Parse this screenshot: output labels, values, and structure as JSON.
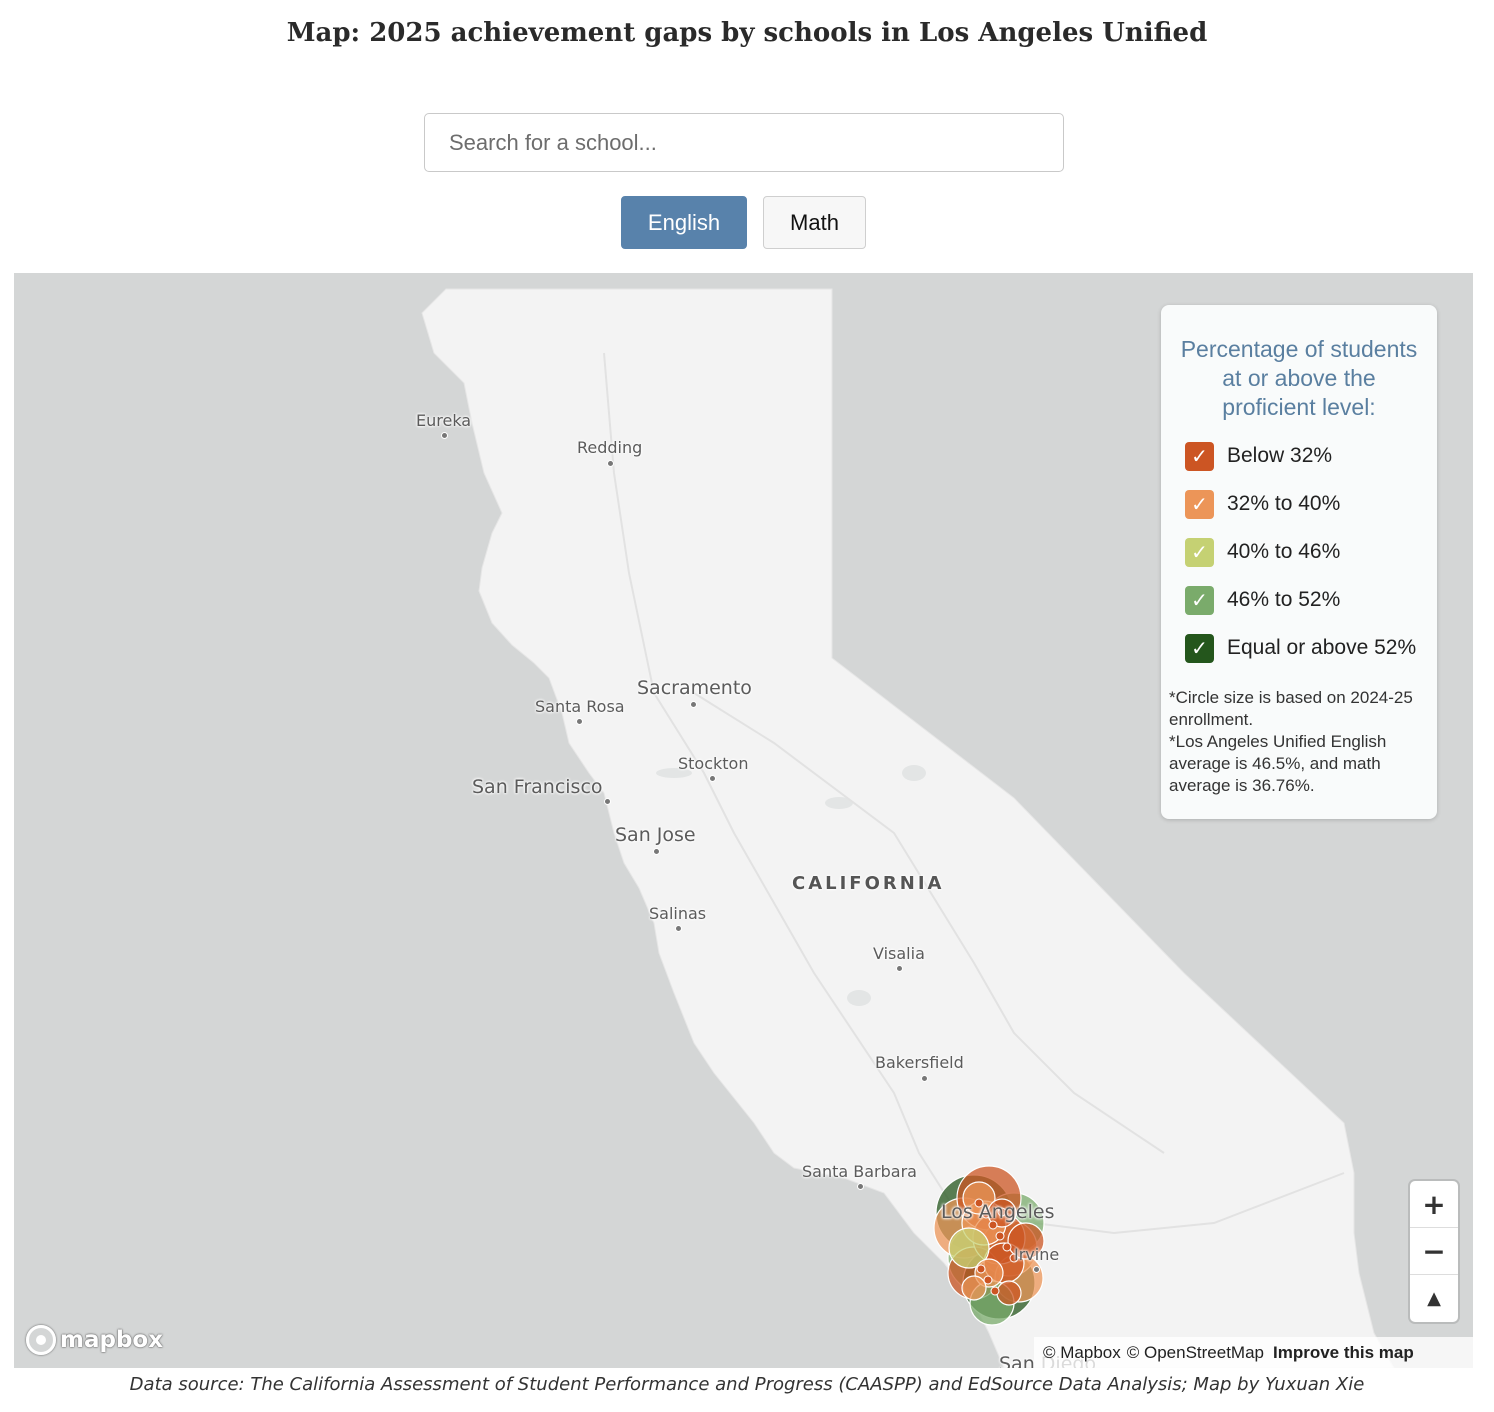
{
  "header": {
    "title": "Map: 2025 achievement gaps by schools in Los Angeles Unified"
  },
  "search": {
    "placeholder": "Search for a school..."
  },
  "subject_toggle": {
    "english_label": "English",
    "math_label": "Math",
    "selected": "English",
    "active_color": "#5882ab"
  },
  "map": {
    "state_label": "CALIFORNIA",
    "places": {
      "eureka": "Eureka",
      "redding": "Redding",
      "sacramento": "Sacramento",
      "santa_rosa": "Santa Rosa",
      "stockton": "Stockton",
      "san_francisco": "San Francisco",
      "san_jose": "San Jose",
      "salinas": "Salinas",
      "visalia": "Visalia",
      "bakersfield": "Bakersfield",
      "santa_barbara": "Santa Barbara",
      "los_angeles": "Los Angeles",
      "irvine": "Irvine",
      "san_diego": "San Diego"
    },
    "colors": {
      "ocean": "#d4d6d6",
      "land": "#f2f2f2"
    }
  },
  "legend": {
    "title": "Percentage of students at or above the proficient level:",
    "items": [
      {
        "label": "Below 32%",
        "color": "#cc5523",
        "checked": true
      },
      {
        "label": "32% to 40%",
        "color": "#ec9558",
        "checked": true
      },
      {
        "label": "40% to 46%",
        "color": "#c5d173",
        "checked": true
      },
      {
        "label": "46% to 52%",
        "color": "#7aab6b",
        "checked": true
      },
      {
        "label": "Equal or above 52%",
        "color": "#24561c",
        "checked": true
      }
    ],
    "note_enrollment": "*Circle size is based on 2024-25 enrollment.",
    "note_average": "*Los Angeles Unified English average is 46.5%, and math average is 36.76%."
  },
  "controls": {
    "zoom_in": "+",
    "zoom_out": "−",
    "compass": "▲"
  },
  "attribution": {
    "logo": "mapbox",
    "mapbox": "© Mapbox",
    "osm": "© OpenStreetMap",
    "improve": "Improve this map"
  },
  "footer": {
    "source": "Data source: The California Assessment of Student Performance and Progress (CAASPP) and EdSource Data Analysis; Map by Yuxuan Xie"
  }
}
